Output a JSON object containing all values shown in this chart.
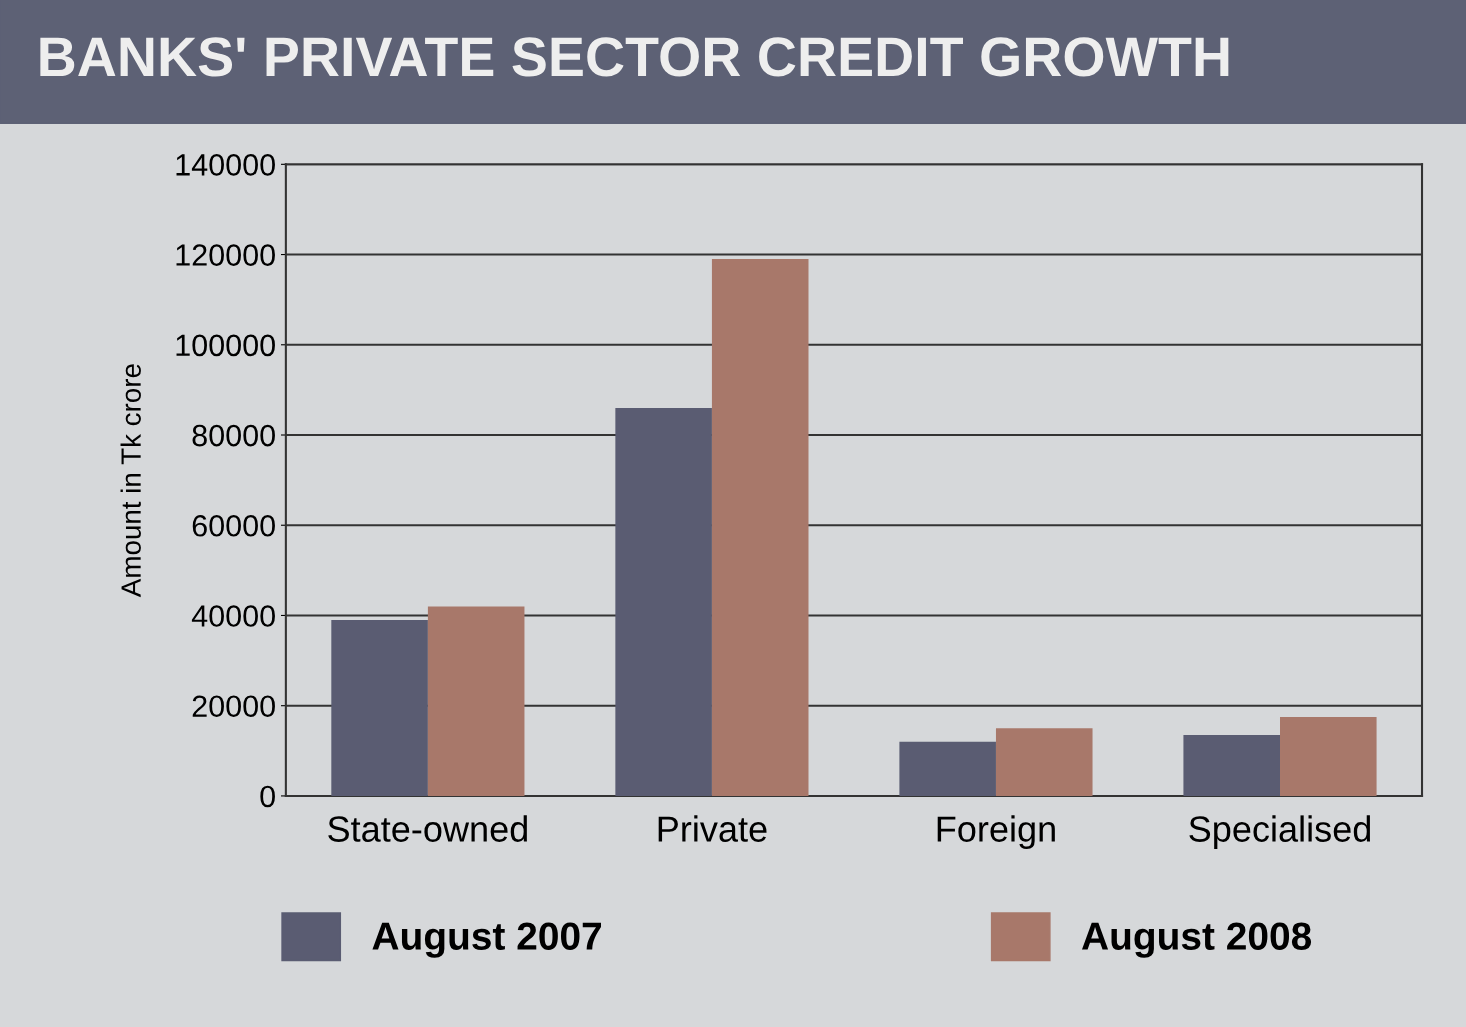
{
  "chart_data": {
    "type": "bar",
    "title": "BANKS' PRIVATE SECTOR CREDIT GROWTH",
    "ylabel": "Amount in Tk crore",
    "categories": [
      "State-owned",
      "Private",
      "Foreign",
      "Specialised"
    ],
    "series": [
      {
        "name": "August 2007",
        "color": "#5a5c72",
        "values": [
          39000,
          86000,
          12000,
          13500
        ]
      },
      {
        "name": "August 2008",
        "color": "#a8786a",
        "values": [
          42000,
          119000,
          15000,
          17500
        ]
      }
    ],
    "ylim": [
      0,
      140000
    ],
    "yticks": [
      0,
      20000,
      40000,
      60000,
      80000,
      100000,
      120000,
      140000
    ],
    "grid": "y",
    "legend": "bottom"
  }
}
